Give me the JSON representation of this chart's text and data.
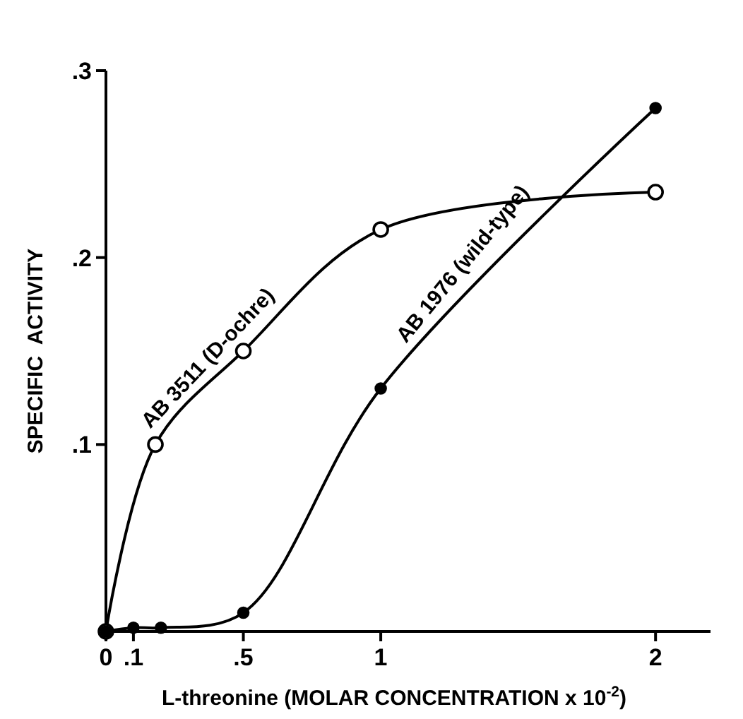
{
  "chart_data": {
    "type": "line",
    "xlabel": "L-threonine (MOLAR CONCENTRATION x 10$^{-2}$)",
    "ylabel": "SPECIFIC  ACTIVITY",
    "xlim": [
      0,
      2.2
    ],
    "xticks": [
      0,
      {
        "value": 0.1,
        "label": ".1"
      },
      {
        "value": 0.5,
        "label": ".5"
      },
      1,
      2
    ],
    "ylim": [
      0,
      0.3
    ],
    "yticks": [
      {
        "value": 0.1,
        "label": ".1"
      },
      {
        "value": 0.2,
        "label": ".2"
      },
      {
        "value": 0.3,
        "label": ".3"
      }
    ],
    "marker": "circle",
    "grid": false,
    "legend": false,
    "series": [
      {
        "name": "AB 3511 (D-ochre)",
        "color": "#000000",
        "x": [
          0,
          0.18,
          0.5,
          1,
          2
        ],
        "values": [
          0,
          0.1,
          0.15,
          0.215,
          0.235
        ]
      },
      {
        "name": "AB 1976 (wild-type)",
        "color": "#000000",
        "x": [
          0,
          0.1,
          0.2,
          0.5,
          1,
          2
        ],
        "values": [
          0,
          0.002,
          0.002,
          0.01,
          0.13,
          0.28
        ]
      }
    ]
  }
}
